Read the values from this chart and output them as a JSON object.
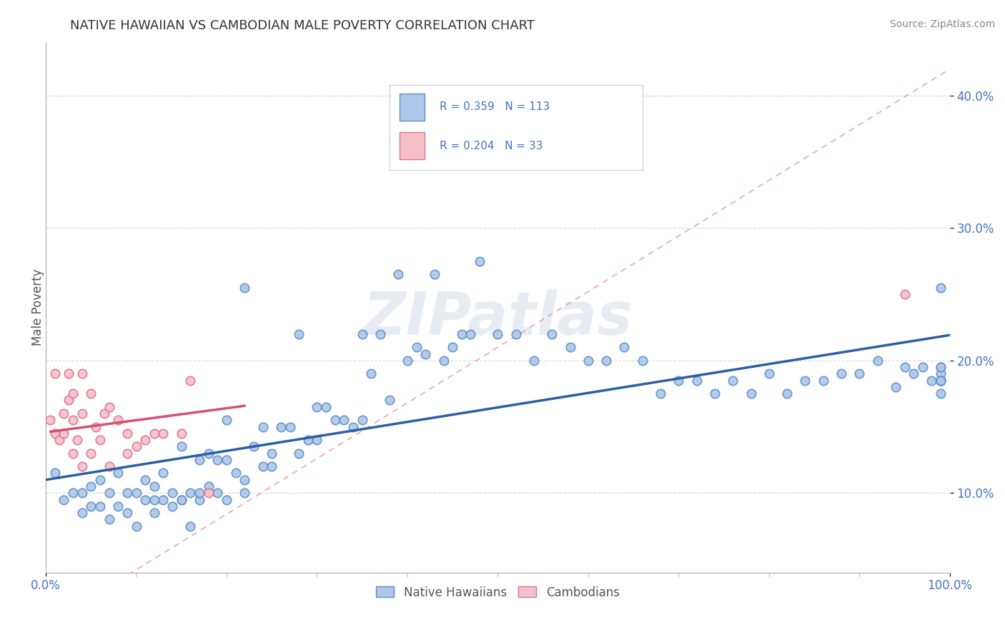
{
  "title": "NATIVE HAWAIIAN VS CAMBODIAN MALE POVERTY CORRELATION CHART",
  "source_text": "Source: ZipAtlas.com",
  "ylabel": "Male Poverty",
  "r_nh": 0.359,
  "n_nh": 113,
  "r_cam": 0.204,
  "n_cam": 33,
  "nh_color": "#aec6e8",
  "nh_edge_color": "#5b8fc9",
  "nh_line_color": "#2b5fa5",
  "cam_color": "#f5c0c8",
  "cam_edge_color": "#e07090",
  "cam_line_color": "#d45070",
  "dash_line_color": "#e08090",
  "watermark": "ZIPatlas",
  "background_color": "#ffffff",
  "nh_scatter_x": [
    0.01,
    0.02,
    0.03,
    0.04,
    0.04,
    0.05,
    0.05,
    0.06,
    0.06,
    0.07,
    0.07,
    0.08,
    0.08,
    0.09,
    0.09,
    0.1,
    0.1,
    0.11,
    0.11,
    0.12,
    0.12,
    0.13,
    0.13,
    0.14,
    0.14,
    0.15,
    0.15,
    0.16,
    0.16,
    0.17,
    0.17,
    0.18,
    0.18,
    0.19,
    0.19,
    0.2,
    0.2,
    0.21,
    0.22,
    0.22,
    0.23,
    0.24,
    0.24,
    0.25,
    0.26,
    0.27,
    0.28,
    0.29,
    0.3,
    0.31,
    0.32,
    0.33,
    0.34,
    0.35,
    0.36,
    0.37,
    0.38,
    0.39,
    0.4,
    0.41,
    0.42,
    0.43,
    0.44,
    0.45,
    0.46,
    0.47,
    0.48,
    0.5,
    0.52,
    0.54,
    0.56,
    0.58,
    0.6,
    0.62,
    0.64,
    0.66,
    0.68,
    0.7,
    0.72,
    0.74,
    0.76,
    0.78,
    0.8,
    0.82,
    0.84,
    0.86,
    0.88,
    0.9,
    0.92,
    0.94,
    0.95,
    0.96,
    0.97,
    0.98,
    0.99,
    0.99,
    0.99,
    0.99,
    0.99,
    0.99,
    0.99,
    0.99,
    0.99,
    0.99,
    0.3,
    0.35,
    0.25,
    0.28,
    0.22,
    0.2,
    0.17,
    0.15,
    0.12
  ],
  "nh_scatter_y": [
    0.115,
    0.095,
    0.1,
    0.085,
    0.1,
    0.09,
    0.105,
    0.09,
    0.11,
    0.08,
    0.1,
    0.09,
    0.115,
    0.085,
    0.1,
    0.075,
    0.1,
    0.095,
    0.11,
    0.095,
    0.105,
    0.095,
    0.115,
    0.09,
    0.1,
    0.095,
    0.135,
    0.075,
    0.1,
    0.095,
    0.125,
    0.105,
    0.13,
    0.125,
    0.1,
    0.125,
    0.155,
    0.115,
    0.255,
    0.11,
    0.135,
    0.12,
    0.15,
    0.12,
    0.15,
    0.15,
    0.22,
    0.14,
    0.14,
    0.165,
    0.155,
    0.155,
    0.15,
    0.22,
    0.19,
    0.22,
    0.17,
    0.265,
    0.2,
    0.21,
    0.205,
    0.265,
    0.2,
    0.21,
    0.22,
    0.22,
    0.275,
    0.22,
    0.22,
    0.2,
    0.22,
    0.21,
    0.2,
    0.2,
    0.21,
    0.2,
    0.175,
    0.185,
    0.185,
    0.175,
    0.185,
    0.175,
    0.19,
    0.175,
    0.185,
    0.185,
    0.19,
    0.19,
    0.2,
    0.18,
    0.195,
    0.19,
    0.195,
    0.185,
    0.255,
    0.19,
    0.185,
    0.195,
    0.185,
    0.185,
    0.185,
    0.195,
    0.175,
    0.185,
    0.165,
    0.155,
    0.13,
    0.13,
    0.1,
    0.095,
    0.1,
    0.095,
    0.085
  ],
  "cam_scatter_x": [
    0.005,
    0.01,
    0.01,
    0.015,
    0.02,
    0.02,
    0.025,
    0.025,
    0.03,
    0.03,
    0.03,
    0.035,
    0.04,
    0.04,
    0.04,
    0.05,
    0.05,
    0.055,
    0.06,
    0.065,
    0.07,
    0.07,
    0.08,
    0.09,
    0.09,
    0.1,
    0.11,
    0.12,
    0.13,
    0.15,
    0.16,
    0.18,
    0.95
  ],
  "cam_scatter_y": [
    0.155,
    0.145,
    0.19,
    0.14,
    0.16,
    0.145,
    0.17,
    0.19,
    0.13,
    0.155,
    0.175,
    0.14,
    0.19,
    0.12,
    0.16,
    0.13,
    0.175,
    0.15,
    0.14,
    0.16,
    0.12,
    0.165,
    0.155,
    0.145,
    0.13,
    0.135,
    0.14,
    0.145,
    0.145,
    0.145,
    0.185,
    0.1,
    0.25
  ]
}
